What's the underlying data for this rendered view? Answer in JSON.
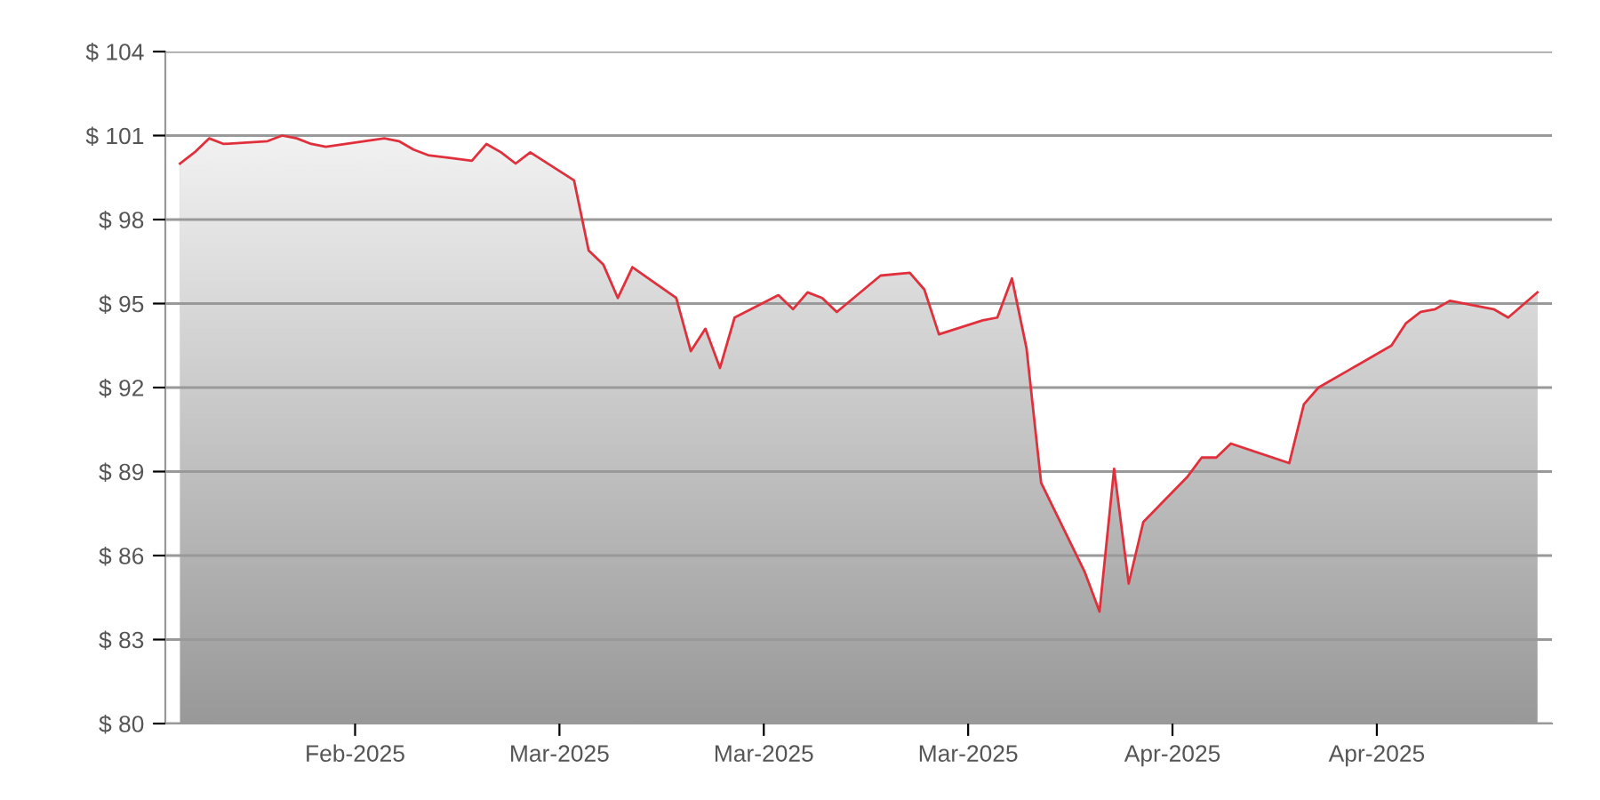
{
  "chart_data": {
    "type": "area",
    "x": [
      "2025-02-04",
      "2025-02-05",
      "2025-02-06",
      "2025-02-07",
      "2025-02-10",
      "2025-02-11",
      "2025-02-12",
      "2025-02-13",
      "2025-02-14",
      "2025-02-18",
      "2025-02-19",
      "2025-02-20",
      "2025-02-21",
      "2025-02-24",
      "2025-02-25",
      "2025-02-26",
      "2025-02-27",
      "2025-02-28",
      "2025-03-03",
      "2025-03-04",
      "2025-03-05",
      "2025-03-06",
      "2025-03-07",
      "2025-03-10",
      "2025-03-11",
      "2025-03-12",
      "2025-03-13",
      "2025-03-14",
      "2025-03-17",
      "2025-03-18",
      "2025-03-19",
      "2025-03-20",
      "2025-03-21",
      "2025-03-24",
      "2025-03-26",
      "2025-03-27",
      "2025-03-28",
      "2025-03-31",
      "2025-04-01",
      "2025-04-02",
      "2025-04-03",
      "2025-04-04",
      "2025-04-07",
      "2025-04-08",
      "2025-04-09",
      "2025-04-10",
      "2025-04-11",
      "2025-04-14",
      "2025-04-15",
      "2025-04-16",
      "2025-04-17",
      "2025-04-21",
      "2025-04-22",
      "2025-04-23",
      "2025-04-25",
      "2025-04-28",
      "2025-04-29",
      "2025-04-30",
      "2025-05-01",
      "2025-05-02",
      "2025-05-05",
      "2025-05-06",
      "2025-05-08"
    ],
    "series": [
      {
        "color": "#e0303c",
        "values": [
          100.0,
          100.4,
          100.9,
          100.7,
          100.8,
          101.0,
          100.9,
          100.7,
          100.6,
          100.9,
          100.8,
          100.5,
          100.3,
          100.1,
          100.7,
          100.4,
          100.0,
          100.4,
          99.4,
          96.9,
          96.4,
          95.2,
          96.3,
          95.2,
          93.3,
          94.1,
          92.7,
          94.5,
          95.3,
          94.8,
          95.4,
          95.2,
          94.7,
          96.0,
          96.1,
          95.5,
          93.9,
          94.4,
          94.5,
          95.9,
          93.4,
          88.6,
          85.4,
          84.0,
          89.1,
          85.0,
          87.2,
          88.8,
          89.5,
          89.5,
          90.0,
          89.3,
          91.4,
          92.0,
          92.6,
          93.5,
          94.3,
          94.7,
          94.8,
          95.1,
          94.8,
          94.5,
          95.4
        ]
      }
    ],
    "xlim": [
      "2025-02-03",
      "2025-05-09"
    ],
    "xticks": [
      {
        "value": "2025-02-16",
        "label": "Feb-2025"
      },
      {
        "value": "2025-03-02",
        "label": "Mar-2025"
      },
      {
        "value": "2025-03-16",
        "label": "Mar-2025"
      },
      {
        "value": "2025-03-30",
        "label": "Mar-2025"
      },
      {
        "value": "2025-04-13",
        "label": "Apr-2025"
      },
      {
        "value": "2025-04-27",
        "label": "Apr-2025"
      }
    ],
    "ylim": [
      80,
      104
    ],
    "yticks": [
      {
        "value": 80,
        "label": "$ 80"
      },
      {
        "value": 83,
        "label": "$ 83"
      },
      {
        "value": 86,
        "label": "$ 86"
      },
      {
        "value": 89,
        "label": "$ 89"
      },
      {
        "value": 92,
        "label": "$ 92"
      },
      {
        "value": 95,
        "label": "$ 95"
      },
      {
        "value": 98,
        "label": "$ 98"
      },
      {
        "value": 101,
        "label": "$ 101"
      },
      {
        "value": 104,
        "label": "$ 104"
      }
    ],
    "grid": "y"
  }
}
